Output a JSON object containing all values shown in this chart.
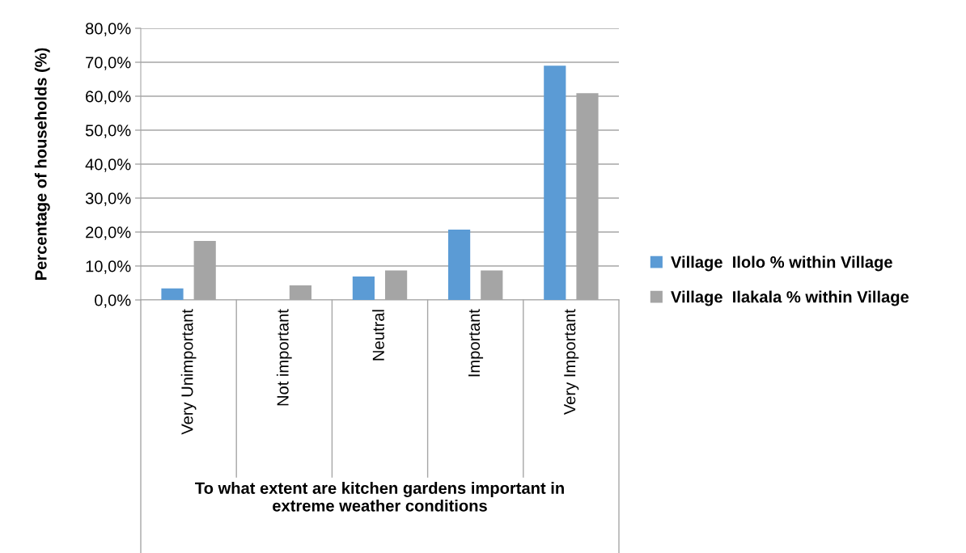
{
  "chart_data": {
    "type": "bar",
    "categories": [
      "Very Unimportant",
      "Not important",
      "Neutral",
      "Important",
      "Very Important"
    ],
    "series": [
      {
        "name": "Village  Ilolo % within Village",
        "color": "#5b9bd5",
        "values": [
          3.4,
          0,
          6.9,
          20.7,
          69.0
        ]
      },
      {
        "name": "Village  Ilakala % within Village",
        "color": "#a5a5a5",
        "values": [
          17.4,
          4.3,
          8.7,
          8.7,
          60.9
        ]
      }
    ],
    "xlabel": "To what extent are kitchen gardens important in\nextreme weather conditions",
    "ylabel": "Percentage of households (%)",
    "ylim": [
      0,
      80
    ],
    "yticks": [
      {
        "value": 0,
        "label": "0,0%"
      },
      {
        "value": 10,
        "label": "10,0%"
      },
      {
        "value": 20,
        "label": "20,0%"
      },
      {
        "value": 30,
        "label": "30,0%"
      },
      {
        "value": 40,
        "label": "40,0%"
      },
      {
        "value": 50,
        "label": "50,0%"
      },
      {
        "value": 60,
        "label": "60,0%"
      },
      {
        "value": 70,
        "label": "70,0%"
      },
      {
        "value": 80,
        "label": "80,0%"
      }
    ],
    "grid": "y",
    "legend": "right"
  }
}
